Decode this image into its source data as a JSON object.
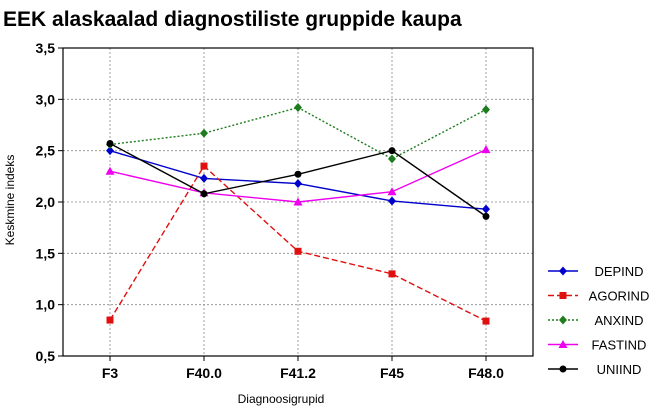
{
  "chart_data": {
    "type": "line",
    "title": "EEK alaskaalad diagnostiliste gruppide kaupa",
    "xlabel": "Diagnoosigrupid",
    "ylabel": "Keskmine indeks",
    "categories": [
      "F3",
      "F40.0",
      "F41.2",
      "F45",
      "F48.0"
    ],
    "ylim": [
      0.5,
      3.5
    ],
    "yticks": [
      "0,5",
      "1,0",
      "1,5",
      "2,0",
      "2,5",
      "3,0",
      "3,5"
    ],
    "ytick_values": [
      0.5,
      1.0,
      1.5,
      2.0,
      2.5,
      3.0,
      3.5
    ],
    "grid": true,
    "legend_position": "right",
    "series": [
      {
        "name": "DEPIND",
        "values": [
          2.5,
          2.23,
          2.18,
          2.01,
          1.93
        ],
        "color": "#0000cc",
        "marker": "diamond",
        "dash": "solid"
      },
      {
        "name": "AGORIND",
        "values": [
          0.85,
          2.35,
          1.52,
          1.3,
          0.84
        ],
        "color": "#e01010",
        "marker": "square",
        "dash": "dashed"
      },
      {
        "name": "ANXIND",
        "values": [
          2.56,
          2.67,
          2.92,
          2.42,
          2.9
        ],
        "color": "#1e7d1e",
        "marker": "diamond",
        "dash": "dotted"
      },
      {
        "name": "FASTIND",
        "values": [
          2.3,
          2.09,
          2.0,
          2.1,
          2.51
        ],
        "color": "#ee00ee",
        "marker": "triangle",
        "dash": "solid"
      },
      {
        "name": "UNIIND",
        "values": [
          2.57,
          2.08,
          2.27,
          2.5,
          1.86
        ],
        "color": "#000000",
        "marker": "circle",
        "dash": "solid"
      }
    ]
  }
}
